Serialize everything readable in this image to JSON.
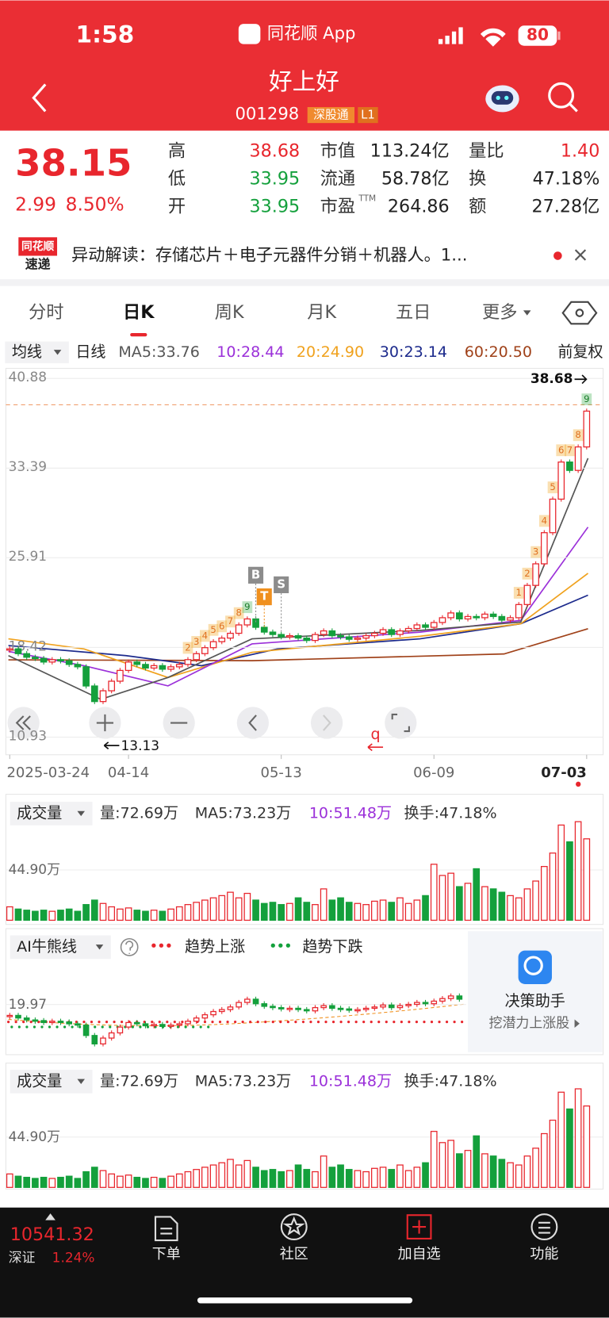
{
  "status_bar": {
    "time": "1:58",
    "app": "同花顺 App",
    "battery": "80"
  },
  "header": {
    "name": "好上好",
    "code": "001298",
    "tags": [
      "深股通",
      "L1"
    ]
  },
  "quote": {
    "price": "38.15",
    "change": "2.99",
    "pct": "8.50%",
    "stats": [
      {
        "label": "高",
        "value": "38.68",
        "color": "#e8262d"
      },
      {
        "label": "低",
        "value": "33.95",
        "color": "#14a03c"
      },
      {
        "label": "开",
        "value": "33.95",
        "color": "#14a03c"
      },
      {
        "label": "市值",
        "value": "113.24亿",
        "color": "#222222"
      },
      {
        "label": "流通",
        "value": "58.78亿",
        "color": "#222222"
      },
      {
        "label": "市盈",
        "sup": "TTM",
        "value": "264.86",
        "color": "#222222"
      },
      {
        "label": "量比",
        "value": "1.40",
        "color": "#e8262d"
      },
      {
        "label": "换",
        "value": "47.18%",
        "color": "#222222"
      },
      {
        "label": "额",
        "value": "27.28亿",
        "color": "#222222"
      }
    ]
  },
  "news": {
    "logo": [
      "同花顺",
      "速递"
    ],
    "text": "异动解读：存储芯片＋电子元器件分销＋机器人。1..."
  },
  "tabs": {
    "items": [
      "分时",
      "日K",
      "周K",
      "月K",
      "五日",
      "更多"
    ],
    "active": 1
  },
  "indicator_bar": {
    "selector": "均线",
    "period": "日线",
    "adjust": "前复权",
    "ma": [
      {
        "text": "MA5:33.76",
        "color": "#555555"
      },
      {
        "text": "10:28.44",
        "color": "#9b30d9"
      },
      {
        "text": "20:24.90",
        "color": "#f0a21e"
      },
      {
        "text": "30:23.14",
        "color": "#1c2a8c"
      },
      {
        "text": "60:20.50",
        "color": "#a0421a"
      }
    ]
  },
  "chart_data": {
    "type": "candlestick",
    "ylim": [
      10.93,
      40.88
    ],
    "yticks": [
      40.88,
      33.39,
      25.91,
      18.42,
      10.93
    ],
    "high": 38.68,
    "low": 13.13,
    "cursor_label": "q",
    "categories": [
      "2025-03-24",
      null,
      null,
      null,
      null,
      null,
      null,
      null,
      null,
      null,
      null,
      null,
      null,
      null,
      "04-14",
      null,
      null,
      null,
      null,
      null,
      null,
      null,
      null,
      null,
      null,
      null,
      null,
      null,
      null,
      null,
      null,
      null,
      "05-13",
      null,
      null,
      null,
      null,
      null,
      null,
      null,
      null,
      null,
      null,
      null,
      null,
      null,
      null,
      null,
      null,
      null,
      "06-09",
      null,
      null,
      null,
      null,
      null,
      null,
      null,
      null,
      null,
      null,
      null,
      null,
      null,
      null,
      null,
      null,
      null,
      "07-03"
    ],
    "closes": [
      18.3,
      17.9,
      17.6,
      17.5,
      17.2,
      17.4,
      17.3,
      17.0,
      16.8,
      15.2,
      13.9,
      14.8,
      15.6,
      16.5,
      17.2,
      17.0,
      16.7,
      16.9,
      16.6,
      16.8,
      17.0,
      17.4,
      17.9,
      18.4,
      18.9,
      19.2,
      19.6,
      20.3,
      20.8,
      20.1,
      19.7,
      19.5,
      19.3,
      19.4,
      19.2,
      19.0,
      19.5,
      19.8,
      19.4,
      19.3,
      19.1,
      19.2,
      19.4,
      19.6,
      19.9,
      19.5,
      19.8,
      20.0,
      20.3,
      20.1,
      20.5,
      20.9,
      21.3,
      20.8,
      21.0,
      20.9,
      21.2,
      21.0,
      20.7,
      20.9,
      22.0,
      23.6,
      25.4,
      28.0,
      30.8,
      33.9,
      33.2,
      35.16,
      38.15
    ],
    "marks": [
      null,
      null,
      null,
      null,
      null,
      null,
      null,
      null,
      null,
      null,
      null,
      null,
      null,
      null,
      null,
      null,
      null,
      null,
      null,
      null,
      null,
      {
        "label": "2",
        "color": "#f0a21e"
      },
      {
        "label": "3",
        "color": "#f0a21e"
      },
      {
        "label": "4",
        "color": "#f0a21e"
      },
      {
        "label": "5",
        "color": "#f0a21e"
      },
      {
        "label": "6",
        "color": "#f0a21e"
      },
      {
        "label": "7",
        "color": "#f0a21e"
      },
      {
        "label": "8",
        "color": "#f0a21e"
      },
      {
        "label": "9",
        "color": "#3fb04f"
      },
      null,
      null,
      null,
      null,
      null,
      null,
      null,
      null,
      null,
      null,
      null,
      null,
      null,
      null,
      null,
      null,
      null,
      null,
      null,
      null,
      null,
      null,
      null,
      null,
      null,
      null,
      null,
      null,
      null,
      null,
      null,
      {
        "label": "1",
        "color": "#f0a21e"
      },
      {
        "label": "2",
        "color": "#f0a21e"
      },
      {
        "label": "3",
        "color": "#f0a21e"
      },
      {
        "label": "4",
        "color": "#f0a21e"
      },
      {
        "label": "5",
        "color": "#f0a21e"
      },
      {
        "label": "6",
        "color": "#f0a21e"
      },
      {
        "label": "7",
        "color": "#f0a21e"
      },
      {
        "label": "8",
        "color": "#f0a21e"
      },
      {
        "label": "9",
        "color": "#3fb04f"
      }
    ],
    "signals": [
      null,
      null,
      null,
      null,
      null,
      null,
      null,
      null,
      null,
      null,
      null,
      null,
      null,
      null,
      null,
      null,
      null,
      null,
      null,
      null,
      null,
      null,
      null,
      null,
      null,
      null,
      null,
      null,
      null,
      {
        "label": "B",
        "color": "#8c8c8c"
      },
      {
        "label": "T",
        "color": "#f0901e"
      },
      null,
      {
        "label": "S",
        "color": "#8c8c8c"
      },
      null,
      null,
      null,
      null,
      null,
      null,
      null,
      null,
      null,
      null,
      null,
      null,
      null,
      null,
      null,
      null,
      null,
      null,
      null,
      null,
      null,
      null,
      null,
      null,
      null,
      null,
      null,
      null,
      null,
      null,
      null,
      null,
      null,
      null,
      null,
      null,
      null
    ]
  },
  "volume": {
    "ylim": [
      0,
      90
    ],
    "ytick": {
      "value": 44.9,
      "label": "44.90万"
    },
    "values": [
      12,
      10,
      9,
      8,
      9,
      8,
      9,
      10,
      8,
      14,
      18,
      15,
      12,
      10,
      11,
      9,
      8,
      9,
      8,
      10,
      12,
      14,
      16,
      18,
      20,
      22,
      25,
      20,
      24,
      18,
      15,
      16,
      14,
      15,
      20,
      16,
      14,
      28,
      18,
      20,
      16,
      15,
      14,
      17,
      18,
      16,
      20,
      15,
      18,
      22,
      50,
      40,
      42,
      30,
      33,
      46,
      30,
      28,
      25,
      22,
      20,
      28,
      35,
      48,
      60,
      85,
      70,
      88,
      72.69
    ]
  },
  "volume_panels": [
    {
      "selector": "成交量",
      "stats": [
        {
          "text": "量:72.69万",
          "color": "#333333"
        },
        {
          "text": "MA5:73.23万",
          "color": "#333333"
        },
        {
          "text": "10:51.48万",
          "color": "#9b30d9"
        },
        {
          "text": "换手:47.18%",
          "color": "#333333"
        }
      ]
    },
    {
      "selector": "成交量",
      "stats": [
        {
          "text": "量:72.69万",
          "color": "#333333"
        },
        {
          "text": "MA5:73.23万",
          "color": "#333333"
        },
        {
          "text": "10:51.48万",
          "color": "#9b30d9"
        },
        {
          "text": "换手:47.18%",
          "color": "#333333"
        }
      ]
    }
  ],
  "ai_panel": {
    "selector": "AI牛熊线",
    "ylim": [
      12.5,
      23
    ],
    "ytick": 19.97,
    "legend": [
      {
        "name": "趋势上涨",
        "color": "#e8262d"
      },
      {
        "name": "趋势下跌",
        "color": "#14a03c"
      }
    ],
    "widget": {
      "title": "决策助手",
      "subtitle": "挖潜力上涨股"
    }
  },
  "bottom_bar": {
    "index_value": "10541.32",
    "index_name": "深证",
    "index_pct": "1.24%",
    "nav": [
      "下单",
      "社区",
      "加自选",
      "功能"
    ]
  }
}
